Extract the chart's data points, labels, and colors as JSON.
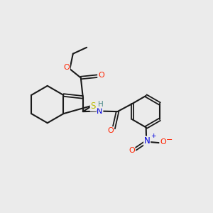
{
  "bg": "#ebebeb",
  "bc": "#1a1a1a",
  "oc": "#ff2200",
  "sc": "#bbbb00",
  "nc": "#0000dd",
  "hc": "#4a8888",
  "lw_s": 1.5,
  "lw_d": 1.3,
  "dg": 0.06,
  "fs": 8.0,
  "xlim": [
    0,
    10
  ],
  "ylim": [
    0,
    10
  ]
}
